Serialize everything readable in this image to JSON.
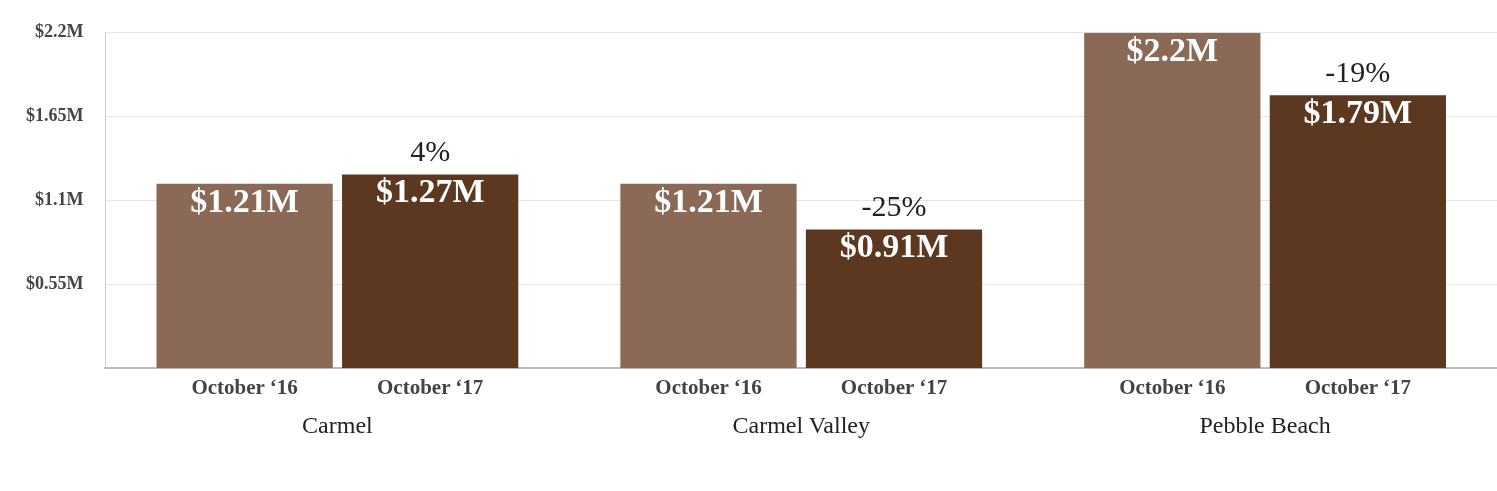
{
  "chart_data": {
    "type": "bar",
    "categories": [
      "Carmel",
      "Carmel Valley",
      "Pebble Beach"
    ],
    "series": [
      {
        "name": "October ‘16",
        "color": "#8a6a56",
        "values": [
          1.21,
          1.21,
          2.2
        ],
        "value_labels": [
          "$1.21M",
          "$1.21M",
          "$2.2M"
        ]
      },
      {
        "name": "October ‘17",
        "color": "#5c3820",
        "values": [
          1.27,
          0.91,
          1.79
        ],
        "value_labels": [
          "$1.27M",
          "$0.91M",
          "$1.79M"
        ]
      }
    ],
    "ylim": [
      0,
      2.2
    ],
    "yticks": [
      {
        "value": 0.55,
        "label": "$0.55M"
      },
      {
        "value": 1.1,
        "label": "$1.1M"
      },
      {
        "value": 1.65,
        "label": "$1.65M"
      },
      {
        "value": 2.2,
        "label": "$2.2M"
      }
    ],
    "grid": "y",
    "annotations": [
      {
        "text": "4%",
        "x": "Carmel",
        "y": 1.27
      },
      {
        "text": "-25%",
        "x": "Carmel Valley",
        "y": 0.91
      },
      {
        "text": "-19%",
        "x": "Pebble Beach",
        "y": 1.79
      }
    ]
  }
}
